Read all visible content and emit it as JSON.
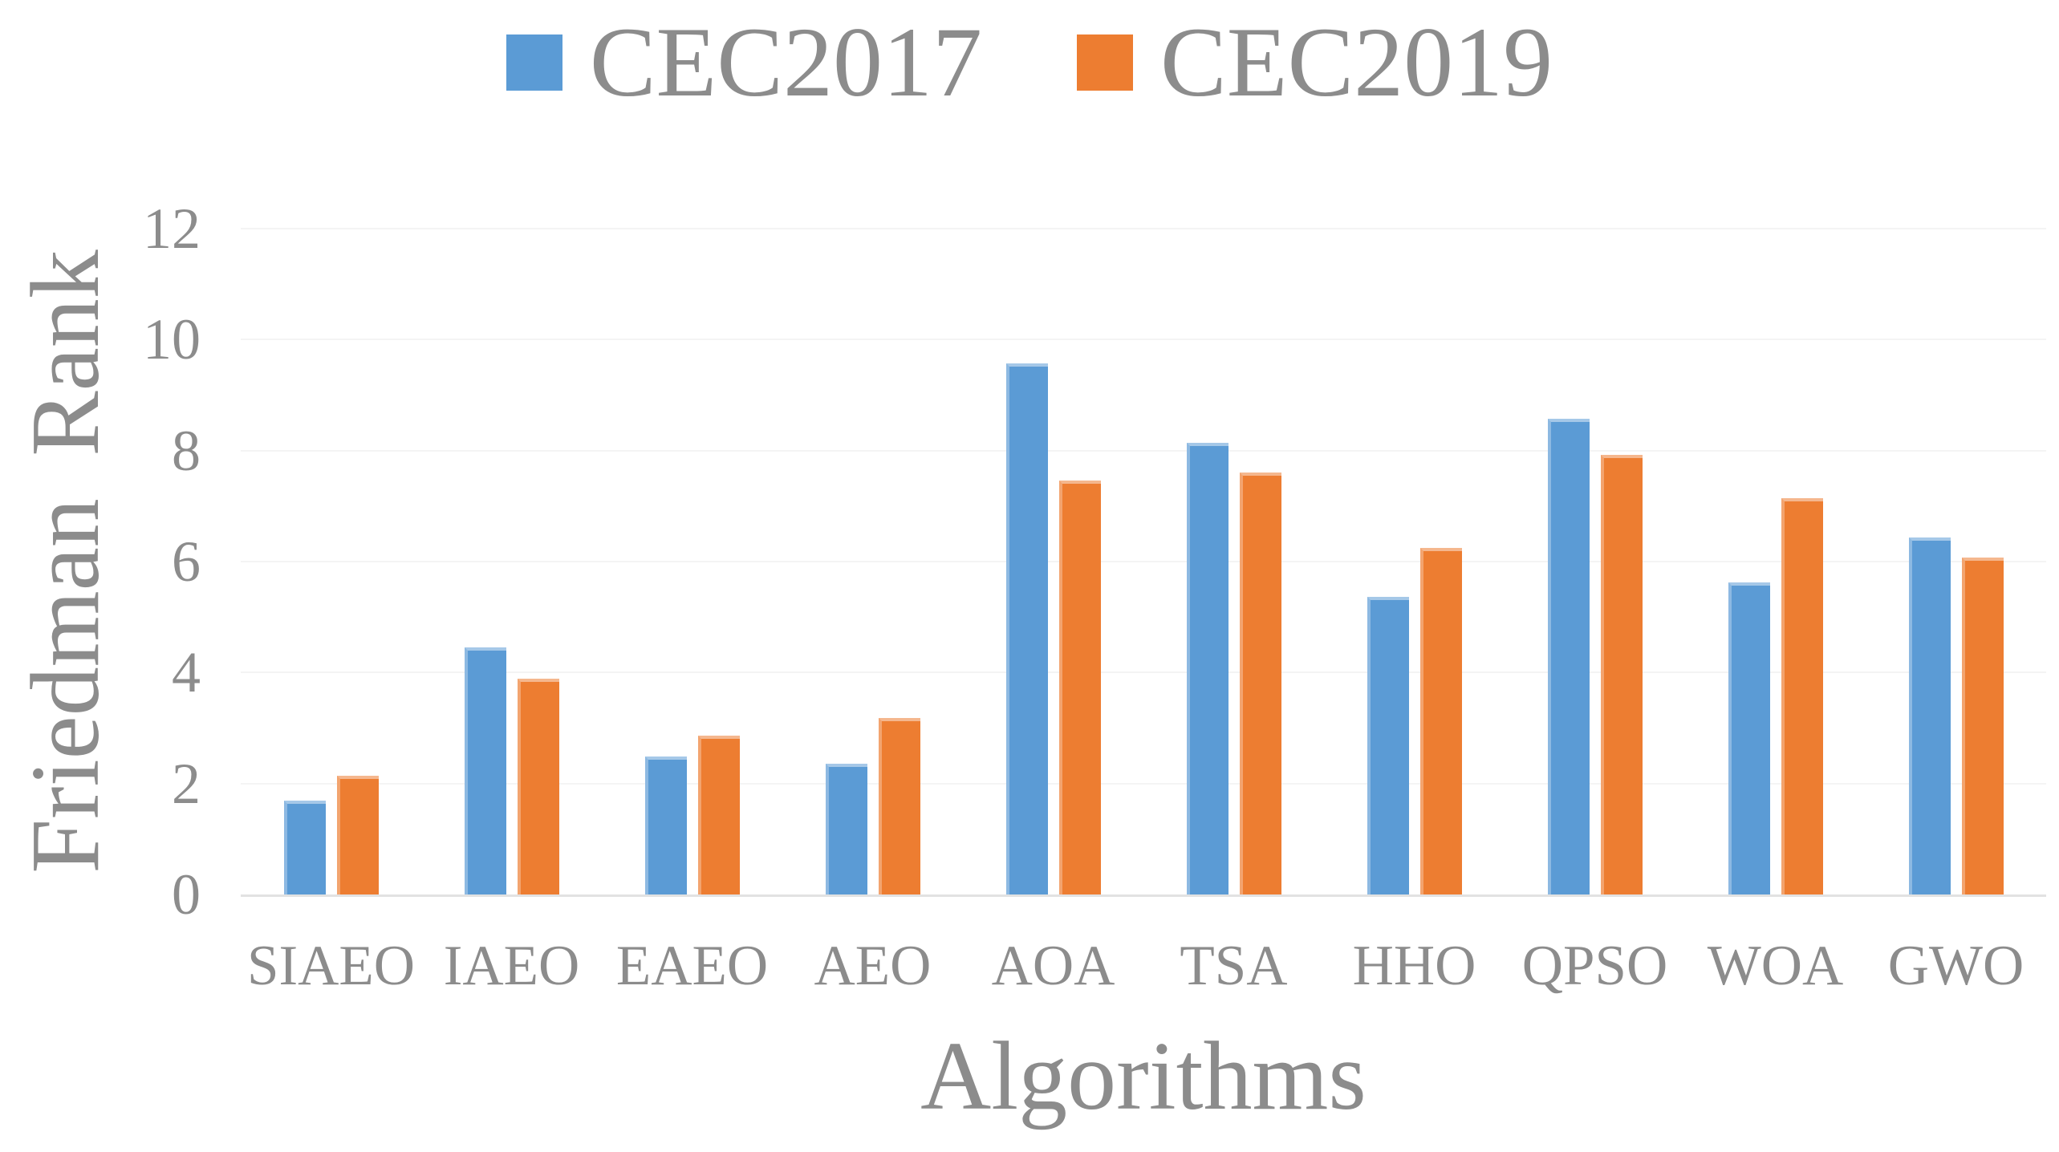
{
  "chart_data": {
    "type": "bar",
    "title": "",
    "categories": [
      "SIAEO",
      "IAEO",
      "EAEO",
      "AEO",
      "AOA",
      "TSA",
      "HHO",
      "QPSO",
      "WOA",
      "GWO"
    ],
    "series": [
      {
        "name": "CEC2017",
        "color": "#5B9BD5",
        "values": [
          1.69,
          4.45,
          2.49,
          2.35,
          9.57,
          8.14,
          5.36,
          8.57,
          5.62,
          6.44
        ]
      },
      {
        "name": "CEC2019",
        "color": "#ED7D31",
        "values": [
          2.14,
          3.89,
          2.86,
          3.18,
          7.46,
          7.61,
          6.25,
          7.93,
          7.14,
          6.07
        ]
      }
    ],
    "xlabel": "Algorithms",
    "ylabel": "Friedman Rank",
    "ylim": [
      0,
      12
    ],
    "yticks": [
      0,
      2,
      4,
      6,
      8,
      10,
      12
    ],
    "grid": true,
    "legend_position": "top"
  },
  "colors": {
    "text": "#8C8C8C",
    "gridline": "#F4F4F4",
    "axis_line": "#E2E2E2",
    "background": "#FFFFFF"
  }
}
